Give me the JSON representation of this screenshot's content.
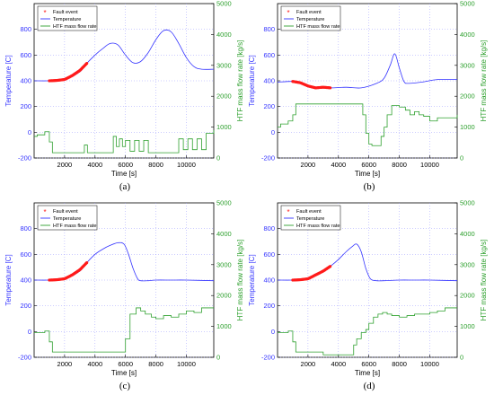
{
  "captions": [
    "(a)",
    "(b)",
    "(c)",
    "(d)"
  ],
  "colors": {
    "temperature": "#3333ff",
    "flow": "#2ea02e",
    "fault": "#ff1a1a",
    "axis_left": "#3333ff",
    "axis_right": "#2ea02e",
    "grid": "#9a9aff"
  },
  "chart_data": [
    {
      "type": "line",
      "panel": "a",
      "xlabel": "Time [s]",
      "ylabel_left": "Temperature [C]",
      "ylabel_right": "HTF mass flow rate [kg/s]",
      "xlim": [
        0,
        11800
      ],
      "ylim_left": [
        -200,
        1000
      ],
      "ylim_right": [
        0,
        5000
      ],
      "xticks": [
        2000,
        4000,
        6000,
        8000,
        10000
      ],
      "yticks_left": [
        -200,
        0,
        200,
        400,
        600,
        800
      ],
      "yticks_right": [
        0,
        1000,
        2000,
        3000,
        4000,
        5000
      ],
      "grid": true,
      "legend_position": "top-left",
      "legend": [
        "Fault event",
        "Temperature",
        "HTF mass flow rate"
      ],
      "series": [
        {
          "name": "Temperature",
          "axis": "left",
          "x": [
            0,
            1000,
            2000,
            3000,
            3500,
            4000,
            4500,
            5000,
            5500,
            6000,
            6500,
            7000,
            7500,
            8000,
            8500,
            9000,
            9500,
            10000,
            10500,
            11000,
            11800
          ],
          "y": [
            400,
            400,
            410,
            470,
            540,
            600,
            650,
            690,
            680,
            600,
            540,
            550,
            620,
            720,
            790,
            780,
            690,
            580,
            510,
            490,
            490
          ]
        },
        {
          "name": "HTF mass flow rate",
          "axis": "right",
          "x": [
            0,
            200,
            700,
            1000,
            1200,
            3100,
            3300,
            3500,
            5000,
            5200,
            5400,
            5600,
            5800,
            6000,
            6300,
            6600,
            6900,
            7200,
            7500,
            8000,
            9000,
            9500,
            9800,
            10100,
            10400,
            10700,
            11000,
            11300,
            11800
          ],
          "y": [
            700,
            750,
            850,
            520,
            170,
            170,
            420,
            170,
            170,
            700,
            370,
            620,
            370,
            570,
            220,
            570,
            220,
            570,
            170,
            170,
            170,
            620,
            270,
            620,
            270,
            620,
            270,
            800,
            900
          ]
        },
        {
          "name": "Fault event",
          "axis": "left",
          "x": [
            1000,
            1500,
            2000,
            2500,
            3000,
            3500
          ],
          "y": [
            400,
            403,
            410,
            440,
            480,
            540
          ]
        }
      ]
    },
    {
      "type": "line",
      "panel": "b",
      "xlabel": "Time [s]",
      "ylabel_left": "Temperature [C]",
      "ylabel_right": "HTF mass flow rate [kg/s]",
      "xlim": [
        0,
        11800
      ],
      "ylim_left": [
        -200,
        1000
      ],
      "ylim_right": [
        0,
        5000
      ],
      "xticks": [
        2000,
        4000,
        6000,
        8000,
        10000
      ],
      "yticks_left": [
        -200,
        0,
        200,
        400,
        600,
        800
      ],
      "yticks_right": [
        0,
        1000,
        2000,
        3000,
        4000,
        5000
      ],
      "grid": true,
      "legend_position": "top-left",
      "legend": [
        "Fault event",
        "Temperature",
        "HTF mass flow rate"
      ],
      "series": [
        {
          "name": "Temperature",
          "axis": "left",
          "x": [
            0,
            1000,
            1500,
            2000,
            2500,
            3000,
            3500,
            4500,
            5500,
            6500,
            7000,
            7400,
            7700,
            8000,
            8300,
            8600,
            9500,
            10500,
            11800
          ],
          "y": [
            390,
            395,
            385,
            360,
            345,
            350,
            345,
            350,
            345,
            380,
            420,
            520,
            610,
            500,
            395,
            380,
            390,
            410,
            410
          ]
        },
        {
          "name": "HTF mass flow rate",
          "axis": "right",
          "x": [
            0,
            200,
            700,
            1000,
            1200,
            5400,
            5600,
            5800,
            6000,
            6200,
            6500,
            6800,
            7000,
            7200,
            7500,
            8000,
            8400,
            8700,
            9000,
            9300,
            9600,
            10000,
            10500,
            11000,
            11800
          ],
          "y": [
            1000,
            1100,
            1200,
            1400,
            1750,
            1750,
            1400,
            800,
            450,
            400,
            400,
            700,
            1000,
            1400,
            1700,
            1650,
            1550,
            1400,
            1500,
            1400,
            1350,
            1200,
            1300,
            1300,
            1400
          ]
        },
        {
          "name": "Fault event",
          "axis": "left",
          "x": [
            1000,
            1500,
            2000,
            2500,
            3000,
            3500
          ],
          "y": [
            395,
            385,
            360,
            345,
            350,
            345
          ]
        }
      ]
    },
    {
      "type": "line",
      "panel": "c",
      "xlabel": "Time [s]",
      "ylabel_left": "Temperature [C]",
      "ylabel_right": "HTF mass flow rate [kg/s]",
      "xlim": [
        0,
        11800
      ],
      "ylim_left": [
        -200,
        1000
      ],
      "ylim_right": [
        0,
        5000
      ],
      "xticks": [
        2000,
        4000,
        6000,
        8000,
        10000
      ],
      "yticks_left": [
        -200,
        0,
        200,
        400,
        600,
        800
      ],
      "yticks_right": [
        0,
        1000,
        2000,
        3000,
        4000,
        5000
      ],
      "grid": true,
      "legend_position": "top-left",
      "legend": [
        "Fault event",
        "Temperature",
        "HTF mass flow rate"
      ],
      "series": [
        {
          "name": "Temperature",
          "axis": "left",
          "x": [
            0,
            1000,
            2000,
            3000,
            3500,
            4000,
            4500,
            5000,
            5500,
            5900,
            6200,
            6500,
            6800,
            7000,
            7500,
            8000,
            9000,
            10000,
            11800
          ],
          "y": [
            400,
            400,
            410,
            470,
            540,
            600,
            640,
            670,
            690,
            680,
            600,
            490,
            410,
            395,
            395,
            400,
            400,
            400,
            395
          ]
        },
        {
          "name": "HTF mass flow rate",
          "axis": "right",
          "x": [
            0,
            200,
            700,
            1000,
            1200,
            5800,
            6000,
            6300,
            6700,
            7000,
            7300,
            7700,
            8000,
            8500,
            9000,
            9500,
            10000,
            10500,
            11000,
            11800
          ],
          "y": [
            800,
            800,
            850,
            500,
            170,
            170,
            600,
            1400,
            1600,
            1500,
            1400,
            1300,
            1250,
            1350,
            1300,
            1400,
            1500,
            1450,
            1600,
            1600
          ]
        },
        {
          "name": "Fault event",
          "axis": "left",
          "x": [
            1000,
            1500,
            2000,
            2500,
            3000,
            3500
          ],
          "y": [
            400,
            403,
            410,
            440,
            480,
            540
          ]
        }
      ]
    },
    {
      "type": "line",
      "panel": "d",
      "xlabel": "Time [s]",
      "ylabel_left": "Temperature [C]",
      "ylabel_right": "HTF mass flow rate [kg/s]",
      "xlim": [
        0,
        11800
      ],
      "ylim_left": [
        -200,
        1000
      ],
      "ylim_right": [
        0,
        5000
      ],
      "xticks": [
        2000,
        4000,
        6000,
        8000,
        10000
      ],
      "yticks_left": [
        -200,
        0,
        200,
        400,
        600,
        800
      ],
      "yticks_right": [
        0,
        1000,
        2000,
        3000,
        4000,
        5000
      ],
      "grid": true,
      "legend_position": "top-left",
      "legend": [
        "Fault event",
        "Temperature",
        "HTF mass flow rate"
      ],
      "series": [
        {
          "name": "Temperature",
          "axis": "left",
          "x": [
            0,
            1000,
            2000,
            3000,
            3500,
            4000,
            4500,
            4900,
            5200,
            5500,
            5800,
            6100,
            6500,
            7000,
            8000,
            9000,
            10000,
            11800
          ],
          "y": [
            400,
            400,
            410,
            470,
            510,
            560,
            620,
            660,
            680,
            620,
            490,
            410,
            395,
            395,
            400,
            400,
            400,
            395
          ]
        },
        {
          "name": "HTF mass flow rate",
          "axis": "right",
          "x": [
            0,
            200,
            700,
            1000,
            1200,
            2500,
            3000,
            4500,
            5000,
            5200,
            5500,
            5800,
            6000,
            6300,
            6600,
            6900,
            7200,
            7500,
            8000,
            8500,
            9000,
            10000,
            10500,
            11000,
            11800
          ],
          "y": [
            800,
            800,
            850,
            500,
            170,
            170,
            80,
            80,
            400,
            600,
            800,
            900,
            1100,
            1300,
            1400,
            1450,
            1400,
            1350,
            1300,
            1350,
            1400,
            1450,
            1500,
            1600,
            1600
          ]
        },
        {
          "name": "Fault event",
          "axis": "left",
          "x": [
            1000,
            1500,
            2000,
            2500,
            3000,
            3500
          ],
          "y": [
            400,
            403,
            410,
            440,
            470,
            510
          ]
        }
      ]
    }
  ]
}
